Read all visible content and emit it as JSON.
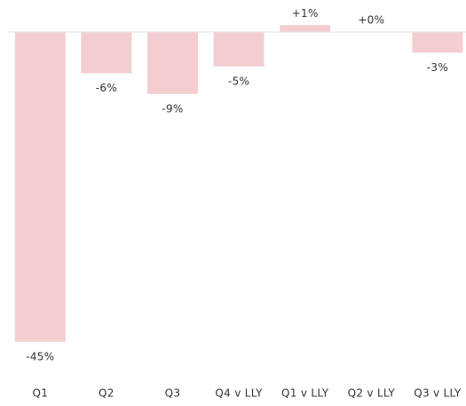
{
  "chart_data": {
    "type": "bar",
    "categories": [
      "Q1",
      "Q2",
      "Q3",
      "Q4 v LLY",
      "Q1 v LLY",
      "Q2 v LLY",
      "Q3 v LLY"
    ],
    "values": [
      -45,
      -6,
      -9,
      -5,
      1,
      0,
      -3
    ],
    "value_labels": [
      "-45%",
      "-6%",
      "-9%",
      "-5%",
      "+1%",
      "+0%",
      "-3%"
    ],
    "color": "#f4cdd1",
    "ylim": [
      -48,
      4
    ]
  }
}
